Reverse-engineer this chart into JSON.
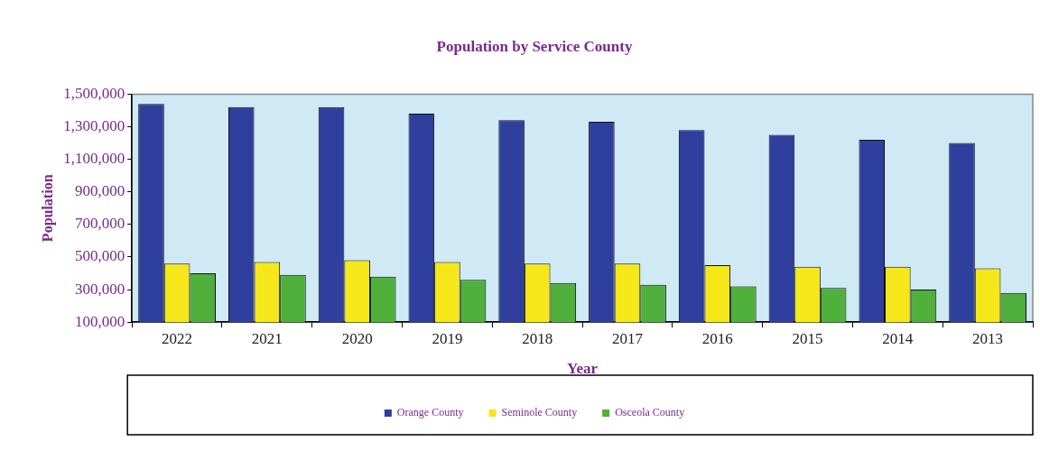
{
  "chart_data": {
    "type": "bar",
    "title": "Population by Service County",
    "xlabel": "Year",
    "ylabel": "Population",
    "categories": [
      "2022",
      "2021",
      "2020",
      "2019",
      "2018",
      "2017",
      "2016",
      "2015",
      "2014",
      "2013"
    ],
    "series": [
      {
        "name": "Orange County",
        "color": "#2e3f9e",
        "values": [
          1440000,
          1420000,
          1420000,
          1380000,
          1340000,
          1330000,
          1280000,
          1250000,
          1220000,
          1200000
        ]
      },
      {
        "name": "Seminole County",
        "color": "#f5e71a",
        "values": [
          460000,
          470000,
          480000,
          470000,
          460000,
          460000,
          450000,
          440000,
          440000,
          430000
        ]
      },
      {
        "name": "Osceola County",
        "color": "#4fb03c",
        "values": [
          400000,
          390000,
          380000,
          360000,
          340000,
          330000,
          320000,
          310000,
          300000,
          280000
        ]
      }
    ],
    "ylim": [
      100000,
      1500000
    ],
    "yticks": [
      {
        "value": 100000,
        "label": "100,000"
      },
      {
        "value": 300000,
        "label": "300,000"
      },
      {
        "value": 500000,
        "label": "500,000"
      },
      {
        "value": 700000,
        "label": "700,000"
      },
      {
        "value": 900000,
        "label": "900,000"
      },
      {
        "value": 1100000,
        "label": "1,100,000"
      },
      {
        "value": 1300000,
        "label": "1,300,000"
      },
      {
        "value": 1500000,
        "label": "1,500,000"
      }
    ],
    "grid": false,
    "legend": "bottom"
  }
}
